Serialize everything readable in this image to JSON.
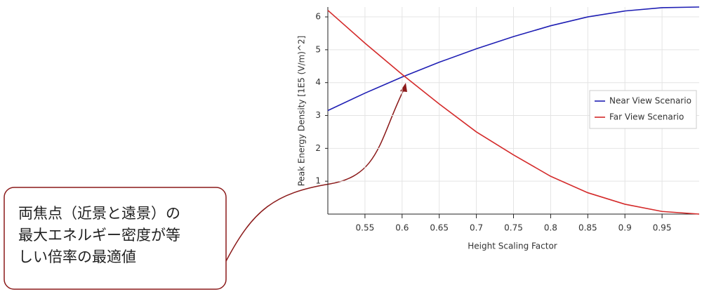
{
  "chart_data": {
    "type": "line",
    "x_label": "Height Scaling Factor",
    "y_label": "Peak Energy Density [1E5 (V/m)^2]",
    "x": [
      0.5,
      0.55,
      0.6,
      0.65,
      0.7,
      0.75,
      0.8,
      0.85,
      0.9,
      0.95,
      1.0
    ],
    "series": [
      {
        "name": "Near View Scenario",
        "color": "#1f1fb4",
        "values": [
          3.15,
          3.68,
          4.17,
          4.62,
          5.03,
          5.4,
          5.73,
          6.0,
          6.18,
          6.28,
          6.3
        ]
      },
      {
        "name": "Far View Scenario",
        "color": "#d42a2a",
        "values": [
          6.2,
          5.2,
          4.25,
          3.35,
          2.5,
          1.8,
          1.15,
          0.65,
          0.3,
          0.08,
          0.0
        ]
      }
    ],
    "xlim": [
      0.5,
      1.0
    ],
    "xticks": [
      0.55,
      0.6,
      0.65,
      0.7,
      0.75,
      0.8,
      0.85,
      0.9,
      0.95
    ],
    "ylim": [
      0,
      6.3
    ],
    "yticks": [
      1,
      2,
      3,
      4,
      5,
      6
    ],
    "grid": true,
    "legend": "right",
    "annotation": {
      "lines": [
        "両焦点（近景と遠景）の",
        "最大エネルギー密度が等",
        "しい倍率の最適値"
      ]
    }
  }
}
